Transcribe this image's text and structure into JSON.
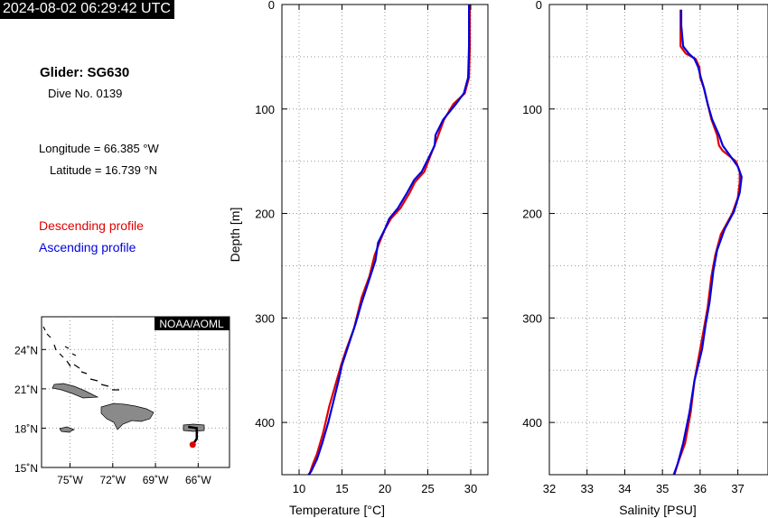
{
  "timestamp": "2024-08-02 06:29:42 UTC",
  "glider": {
    "title": "Glider: SG630",
    "dive": "Dive No. 0139",
    "longitude": "Longitude = 66.385 °W",
    "latitude": "Latitude = 16.739 °N"
  },
  "legend": {
    "descending": "Descending profile",
    "ascending": "Ascending profile",
    "descending_color": "#e00000",
    "ascending_color": "#0000e0"
  },
  "map": {
    "credit": "NOAA/AOML",
    "lat_labels": [
      "24˚N",
      "21˚N",
      "18˚N",
      "15˚N"
    ],
    "lon_labels": [
      "75˚W",
      "72˚W",
      "69˚W",
      "66˚W"
    ],
    "lat_range": [
      15,
      26.5
    ],
    "lon_range": [
      -77,
      -63.8
    ],
    "glider_track": [
      [
        -66.7,
        18.1
      ],
      [
        -66.1,
        18.0
      ],
      [
        -66.1,
        17.2
      ],
      [
        -66.385,
        16.739
      ]
    ],
    "glider_position": [
      -66.385,
      16.739
    ]
  },
  "chart_data": [
    {
      "type": "line",
      "xlabel": "Temperature [°C]",
      "ylabel": "Depth [m]",
      "xlim": [
        8,
        32
      ],
      "ylim": [
        0,
        450
      ],
      "y_inverted": true,
      "x_ticks": [
        "10",
        "15",
        "20",
        "25",
        "30"
      ],
      "y_ticks": [
        "0",
        "100",
        "200",
        "300",
        "400"
      ],
      "grid": true,
      "series": [
        {
          "name": "Descending profile",
          "color": "#e00000",
          "points": [
            [
              29.9,
              0
            ],
            [
              29.9,
              40
            ],
            [
              29.8,
              70
            ],
            [
              29.3,
              85
            ],
            [
              28.0,
              95
            ],
            [
              26.9,
              110
            ],
            [
              26.0,
              130
            ],
            [
              25.3,
              145
            ],
            [
              24.6,
              160
            ],
            [
              23.5,
              170
            ],
            [
              22.9,
              180
            ],
            [
              21.8,
              195
            ],
            [
              20.7,
              205
            ],
            [
              20.0,
              215
            ],
            [
              19.5,
              225
            ],
            [
              18.8,
              240
            ],
            [
              18.2,
              260
            ],
            [
              17.3,
              280
            ],
            [
              16.4,
              310
            ],
            [
              15.5,
              330
            ],
            [
              14.9,
              345
            ],
            [
              14.2,
              365
            ],
            [
              13.5,
              385
            ],
            [
              12.8,
              410
            ],
            [
              12.1,
              430
            ],
            [
              11.6,
              440
            ],
            [
              11.2,
              450
            ]
          ]
        },
        {
          "name": "Ascending profile",
          "color": "#0000e0",
          "points": [
            [
              29.8,
              0
            ],
            [
              29.8,
              40
            ],
            [
              29.7,
              70
            ],
            [
              29.2,
              85
            ],
            [
              28.3,
              95
            ],
            [
              26.8,
              110
            ],
            [
              25.9,
              125
            ],
            [
              25.8,
              135
            ],
            [
              25.2,
              145
            ],
            [
              24.3,
              160
            ],
            [
              23.4,
              168
            ],
            [
              22.6,
              180
            ],
            [
              21.5,
              195
            ],
            [
              20.5,
              205
            ],
            [
              20.0,
              215
            ],
            [
              19.2,
              228
            ],
            [
              18.9,
              245
            ],
            [
              18.1,
              265
            ],
            [
              17.3,
              285
            ],
            [
              16.6,
              305
            ],
            [
              15.8,
              325
            ],
            [
              15.0,
              345
            ],
            [
              14.6,
              360
            ],
            [
              14.0,
              380
            ],
            [
              13.4,
              400
            ],
            [
              12.7,
              420
            ],
            [
              12.1,
              435
            ],
            [
              11.4,
              447
            ],
            [
              11.1,
              450
            ]
          ]
        }
      ]
    },
    {
      "type": "line",
      "xlabel": "Salinity [PSU]",
      "ylabel": "",
      "xlim": [
        32,
        37.8
      ],
      "ylim": [
        0,
        450
      ],
      "y_inverted": true,
      "x_ticks": [
        "32",
        "33",
        "34",
        "35",
        "36",
        "37"
      ],
      "y_ticks": [
        "0",
        "100",
        "200",
        "300",
        "400"
      ],
      "grid": true,
      "series": [
        {
          "name": "Descending profile",
          "color": "#e00000",
          "points": [
            [
              35.48,
              5
            ],
            [
              35.48,
              40
            ],
            [
              35.62,
              47
            ],
            [
              35.88,
              52
            ],
            [
              35.98,
              60
            ],
            [
              36.0,
              70
            ],
            [
              36.1,
              80
            ],
            [
              36.2,
              95
            ],
            [
              36.3,
              110
            ],
            [
              36.45,
              125
            ],
            [
              36.5,
              135
            ],
            [
              36.6,
              140
            ],
            [
              36.95,
              150
            ],
            [
              37.05,
              160
            ],
            [
              37.05,
              170
            ],
            [
              37.0,
              185
            ],
            [
              36.85,
              200
            ],
            [
              36.55,
              220
            ],
            [
              36.4,
              240
            ],
            [
              36.3,
              260
            ],
            [
              36.2,
              290
            ],
            [
              36.1,
              310
            ],
            [
              36.0,
              330
            ],
            [
              35.85,
              360
            ],
            [
              35.75,
              390
            ],
            [
              35.6,
              420
            ],
            [
              35.4,
              440
            ],
            [
              35.32,
              450
            ]
          ]
        },
        {
          "name": "Ascending profile",
          "color": "#0000e0",
          "points": [
            [
              35.5,
              5
            ],
            [
              35.5,
              20
            ],
            [
              35.55,
              40
            ],
            [
              35.7,
              47
            ],
            [
              35.85,
              52
            ],
            [
              35.95,
              60
            ],
            [
              36.02,
              70
            ],
            [
              36.1,
              80
            ],
            [
              36.2,
              95
            ],
            [
              36.32,
              110
            ],
            [
              36.5,
              125
            ],
            [
              36.6,
              135
            ],
            [
              36.8,
              145
            ],
            [
              37.0,
              155
            ],
            [
              37.1,
              165
            ],
            [
              37.05,
              180
            ],
            [
              36.9,
              198
            ],
            [
              36.65,
              215
            ],
            [
              36.45,
              235
            ],
            [
              36.35,
              255
            ],
            [
              36.25,
              285
            ],
            [
              36.15,
              305
            ],
            [
              36.05,
              330
            ],
            [
              35.85,
              360
            ],
            [
              35.72,
              390
            ],
            [
              35.55,
              420
            ],
            [
              35.4,
              440
            ],
            [
              35.3,
              450
            ]
          ]
        }
      ]
    }
  ]
}
